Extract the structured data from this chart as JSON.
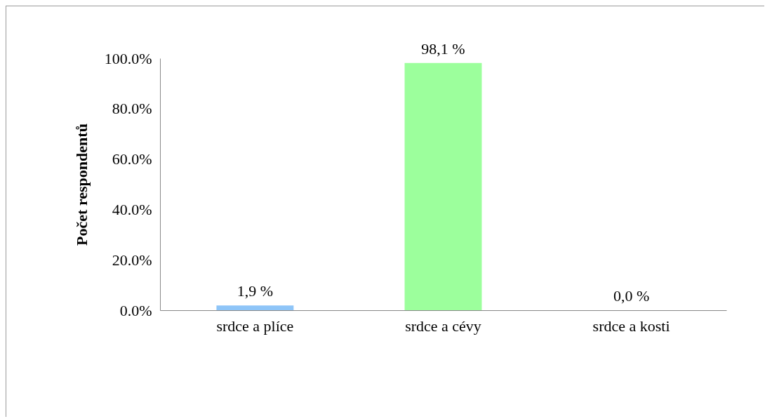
{
  "chart_data": {
    "type": "bar",
    "ylabel": "Počet respondentů",
    "categories": [
      "srdce a plíce",
      "srdce a cévy",
      "srdce a kosti"
    ],
    "values": [
      1.9,
      98.1,
      0.0
    ],
    "colors": [
      "#8ec5f8",
      "#9cff9c",
      "#f4b183"
    ],
    "value_labels": [
      "1,9 %",
      "98,1 %",
      "0,0 %"
    ],
    "ylim": [
      0,
      100
    ],
    "yticks": [
      {
        "value": 0,
        "label": "0.0%"
      },
      {
        "value": 20,
        "label": "20.0%"
      },
      {
        "value": 40,
        "label": "40.0%"
      },
      {
        "value": 60,
        "label": "60.0%"
      },
      {
        "value": 80,
        "label": "80.0%"
      },
      {
        "value": 100,
        "label": "100.0%"
      }
    ]
  }
}
